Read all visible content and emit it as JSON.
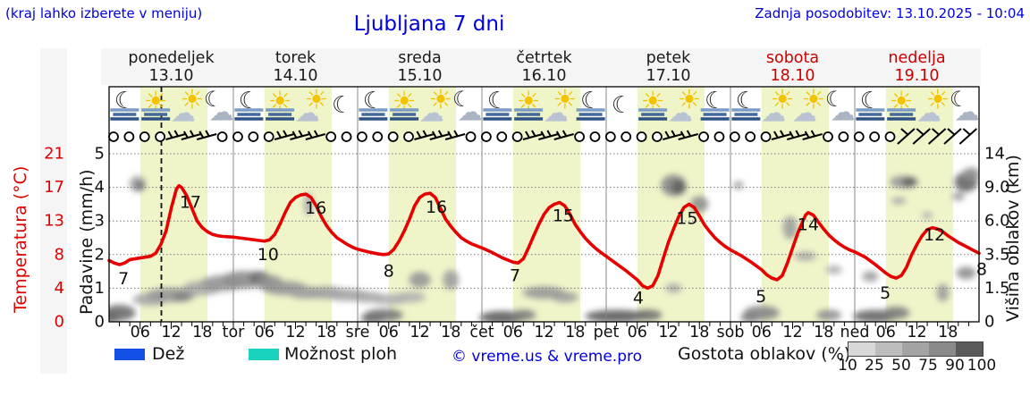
{
  "page": {
    "top_left_note": "(kraj lahko izberete v meniju)",
    "title": "Ljubljana 7 dni",
    "last_update": "Zadnja posodobitev: 13.10.2025 - 10:04"
  },
  "colors": {
    "text_blue": "#0000dd",
    "text_red": "#cc0000",
    "temp_curve": "#e60000",
    "daylight_band": "#f0f4c9",
    "rain_swatch": "#1450e8",
    "shower_swatch": "#19d3be",
    "fog_lines": [
      "#7b9cc6",
      "#44699c",
      "#2e5282"
    ],
    "sun": "#f3c300",
    "cloud_icon": "#b9c3d2",
    "density_scale": [
      "#d8d8d8",
      "#bdbdbd",
      "#a3a3a3",
      "#8a8a8a",
      "#5a5a5a"
    ]
  },
  "days": [
    {
      "name": "ponedeljek",
      "date": "13.10",
      "red": false
    },
    {
      "name": "torek",
      "date": "14.10",
      "red": false
    },
    {
      "name": "sreda",
      "date": "15.10",
      "red": false
    },
    {
      "name": "četrtek",
      "date": "16.10",
      "red": false
    },
    {
      "name": "petek",
      "date": "17.10",
      "red": false
    },
    {
      "name": "sobota",
      "date": "18.10",
      "red": true
    },
    {
      "name": "nedelja",
      "date": "19.10",
      "red": true
    }
  ],
  "axes": {
    "temp_label": "Temperatura (°C)",
    "temp_ticks": [
      "21",
      "17",
      "13",
      "8",
      "4",
      "0"
    ],
    "precip_label": "Padavine (mm/h)",
    "precip_ticks": [
      "5",
      "4",
      "3",
      "2",
      "1",
      "0"
    ],
    "cloud_label": "Višina oblakov (km)",
    "cloud_ticks": [
      "14",
      "9.0",
      "6.0",
      "3.5",
      "1.5",
      "0"
    ],
    "hour_labels": [
      "06",
      "12",
      "18"
    ],
    "day_abbrs": [
      "tor",
      "sre",
      "čet",
      "pet",
      "sob",
      "ned"
    ]
  },
  "legend": {
    "rain": "Dež",
    "showers": "Možnost ploh",
    "copyright": "© vreme.us & vreme.pro",
    "cloud_density": "Gostota oblakov (%)",
    "density_ticks": [
      "10",
      "25",
      "50",
      "75",
      "90",
      "100"
    ]
  },
  "chart_data": {
    "type": "line",
    "title": "Ljubljana 7 dni",
    "x_axis": {
      "unit": "hours from Mon 13.10 00:00",
      "range": [
        0,
        168
      ],
      "daylight_hours": [
        6,
        19
      ],
      "current_time_t": 10.1
    },
    "y_axes": {
      "temperature_c": {
        "ticks": [
          21,
          17,
          13,
          8,
          4,
          0
        ]
      },
      "precip_mm_h": {
        "ticks": [
          5,
          4,
          3,
          2,
          1,
          0
        ]
      },
      "cloud_height_km": {
        "ticks": [
          14,
          9.0,
          6.0,
          3.5,
          1.5,
          0
        ]
      }
    },
    "temperature_series": {
      "name": "Temperatura (°C)",
      "points": [
        [
          0,
          7.3
        ],
        [
          1,
          7.0
        ],
        [
          2,
          6.8
        ],
        [
          3,
          7.0
        ],
        [
          4,
          7.4
        ],
        [
          6,
          7.6
        ],
        [
          8,
          7.8
        ],
        [
          9,
          8.2
        ],
        [
          10,
          9.5
        ],
        [
          11,
          11.5
        ],
        [
          12,
          14.5
        ],
        [
          13,
          16.8
        ],
        [
          13.5,
          17.2
        ],
        [
          14,
          17.0
        ],
        [
          15,
          16.0
        ],
        [
          16,
          14.5
        ],
        [
          17,
          13.0
        ],
        [
          18,
          12.0
        ],
        [
          19,
          11.4
        ],
        [
          20,
          11.0
        ],
        [
          21,
          10.8
        ],
        [
          22,
          10.7
        ],
        [
          24,
          10.6
        ],
        [
          26,
          10.4
        ],
        [
          28,
          10.2
        ],
        [
          30,
          10.0
        ],
        [
          31,
          10.2
        ],
        [
          32,
          11.0
        ],
        [
          33,
          12.5
        ],
        [
          34,
          14.0
        ],
        [
          35,
          15.2
        ],
        [
          36,
          15.8
        ],
        [
          37,
          16.1
        ],
        [
          38,
          16.2
        ],
        [
          39,
          15.8
        ],
        [
          40,
          14.8
        ],
        [
          41,
          13.5
        ],
        [
          42,
          12.3
        ],
        [
          43,
          11.3
        ],
        [
          44,
          10.5
        ],
        [
          45,
          10.0
        ],
        [
          46,
          9.5
        ],
        [
          47,
          9.1
        ],
        [
          48,
          8.8
        ],
        [
          50,
          8.4
        ],
        [
          52,
          8.1
        ],
        [
          53,
          8.0
        ],
        [
          54,
          8.1
        ],
        [
          55,
          8.8
        ],
        [
          56,
          10.0
        ],
        [
          57,
          11.5
        ],
        [
          58,
          13.2
        ],
        [
          59,
          14.8
        ],
        [
          60,
          15.8
        ],
        [
          61,
          16.2
        ],
        [
          62,
          16.3
        ],
        [
          63,
          15.8
        ],
        [
          64,
          14.5
        ],
        [
          65,
          13.2
        ],
        [
          66,
          12.2
        ],
        [
          67,
          11.3
        ],
        [
          68,
          10.5
        ],
        [
          69,
          10.0
        ],
        [
          70,
          9.6
        ],
        [
          71,
          9.3
        ],
        [
          72,
          9.0
        ],
        [
          74,
          8.3
        ],
        [
          76,
          7.6
        ],
        [
          78,
          7.1
        ],
        [
          79,
          7.0
        ],
        [
          80,
          7.5
        ],
        [
          81,
          9.0
        ],
        [
          82,
          10.8
        ],
        [
          83,
          12.5
        ],
        [
          84,
          13.8
        ],
        [
          85,
          14.6
        ],
        [
          86,
          15.0
        ],
        [
          87,
          15.2
        ],
        [
          88,
          14.8
        ],
        [
          89,
          13.8
        ],
        [
          90,
          12.5
        ],
        [
          91,
          11.4
        ],
        [
          92,
          10.4
        ],
        [
          93,
          9.6
        ],
        [
          94,
          8.9
        ],
        [
          95,
          8.3
        ],
        [
          96,
          7.8
        ],
        [
          98,
          6.9
        ],
        [
          100,
          6.0
        ],
        [
          102,
          5.0
        ],
        [
          103,
          4.3
        ],
        [
          104,
          4.0
        ],
        [
          105,
          4.3
        ],
        [
          106,
          5.5
        ],
        [
          107,
          7.5
        ],
        [
          108,
          9.8
        ],
        [
          109,
          11.8
        ],
        [
          110,
          13.5
        ],
        [
          111,
          14.6
        ],
        [
          112,
          15.0
        ],
        [
          113,
          14.6
        ],
        [
          114,
          13.6
        ],
        [
          115,
          12.4
        ],
        [
          116,
          11.4
        ],
        [
          117,
          10.5
        ],
        [
          118,
          9.8
        ],
        [
          119,
          9.2
        ],
        [
          120,
          8.7
        ],
        [
          122,
          7.9
        ],
        [
          124,
          7.1
        ],
        [
          126,
          6.2
        ],
        [
          127,
          5.6
        ],
        [
          128,
          5.2
        ],
        [
          129,
          5.0
        ],
        [
          130,
          5.5
        ],
        [
          131,
          7.0
        ],
        [
          132,
          9.0
        ],
        [
          133,
          11.2
        ],
        [
          134,
          13.0
        ],
        [
          134.5,
          13.7
        ],
        [
          135,
          14.0
        ],
        [
          136,
          13.7
        ],
        [
          137,
          12.8
        ],
        [
          138,
          11.8
        ],
        [
          139,
          10.9
        ],
        [
          140,
          10.2
        ],
        [
          141,
          9.6
        ],
        [
          142,
          9.1
        ],
        [
          143,
          8.7
        ],
        [
          144,
          8.4
        ],
        [
          146,
          7.7
        ],
        [
          148,
          6.8
        ],
        [
          150,
          5.8
        ],
        [
          151,
          5.4
        ],
        [
          152,
          5.2
        ],
        [
          153,
          5.5
        ],
        [
          154,
          6.5
        ],
        [
          155,
          8.0
        ],
        [
          156,
          9.5
        ],
        [
          157,
          10.8
        ],
        [
          158,
          11.7
        ],
        [
          159,
          12.0
        ],
        [
          160,
          11.8
        ],
        [
          161,
          11.4
        ],
        [
          162,
          10.8
        ],
        [
          163,
          10.3
        ],
        [
          164,
          9.8
        ],
        [
          165,
          9.4
        ],
        [
          166,
          9.0
        ],
        [
          167,
          8.6
        ],
        [
          168,
          8.2
        ]
      ]
    },
    "daily_extremes": [
      [
        2.8,
        5.1,
        "7"
      ],
      [
        15.7,
        15.2,
        "17"
      ],
      [
        30.7,
        8.0,
        "10"
      ],
      [
        39.9,
        14.5,
        "16"
      ],
      [
        54.0,
        6.0,
        "8"
      ],
      [
        63.2,
        14.6,
        "16"
      ],
      [
        78.4,
        5.5,
        "7"
      ],
      [
        87.7,
        13.6,
        "15"
      ],
      [
        102.2,
        2.8,
        "4"
      ],
      [
        111.6,
        13.3,
        "15"
      ],
      [
        125.9,
        3.0,
        "5"
      ],
      [
        135.0,
        12.4,
        "14"
      ],
      [
        149.9,
        3.4,
        "5"
      ],
      [
        159.4,
        10.9,
        "12"
      ],
      [
        168.5,
        6.2,
        "8"
      ]
    ],
    "weather_icons": [
      "moon-fog",
      "sun-fog",
      "sun-cloud",
      "moon-cloud",
      "moon-fog",
      "sun-fog",
      "sun-cloud",
      "moon",
      "moon-fog",
      "sun-fog",
      "sun-cloud",
      "moon-cloud",
      "moon-fog",
      "sun-fog",
      "sun-cloud",
      "moon-fog",
      "moon",
      "sun-fog",
      "sun-cloud",
      "moon-fog",
      "moon-fog",
      "sun-cloud",
      "sun-cloud",
      "moon-cloud",
      "moon-fog",
      "sun-fog",
      "sun-cloud",
      "moon-cloud"
    ],
    "wind_symbols": [
      "calm",
      "calm",
      "calm",
      "calm",
      "barb",
      "barb",
      "barb",
      "calm",
      "calm",
      "calm",
      "calm",
      "barb",
      "barb",
      "barb",
      "calm",
      "calm",
      "calm",
      "calm",
      "calm",
      "calm",
      "barb",
      "barb",
      "barb",
      "calm",
      "calm",
      "calm",
      "calm",
      "barb",
      "barb",
      "barb",
      "calm",
      "calm",
      "calm",
      "calm",
      "calm",
      "calm",
      "barb",
      "barb",
      "calm",
      "calm",
      "calm",
      "calm",
      "calm",
      "barb",
      "barb",
      "barb",
      "calm",
      "calm",
      "calm",
      "calm",
      "calm",
      "strong",
      "strong",
      "strong",
      "strong",
      "strong"
    ],
    "cloud_blobs_t_km_rx_ry_density": [
      [
        0.5,
        0.2,
        10,
        6,
        0.85
      ],
      [
        2,
        0.4,
        18,
        9,
        0.7
      ],
      [
        5.5,
        9.5,
        9,
        9,
        0.4
      ],
      [
        6,
        9.2,
        5,
        5,
        0.7
      ],
      [
        8,
        1.0,
        20,
        7,
        0.35
      ],
      [
        12,
        1.2,
        28,
        8,
        0.45
      ],
      [
        14,
        1.1,
        10,
        5,
        0.6
      ],
      [
        18,
        1.5,
        22,
        8,
        0.35
      ],
      [
        22,
        1.8,
        25,
        9,
        0.45
      ],
      [
        26,
        2.0,
        25,
        10,
        0.5
      ],
      [
        29,
        2.1,
        12,
        8,
        0.7
      ],
      [
        31,
        1.8,
        15,
        9,
        0.5
      ],
      [
        34,
        1.5,
        25,
        8,
        0.45
      ],
      [
        38,
        1.3,
        20,
        7,
        0.4
      ],
      [
        38.5,
        7.5,
        5,
        13,
        0.35
      ],
      [
        42,
        1.3,
        22,
        7,
        0.4
      ],
      [
        46,
        1.2,
        25,
        7,
        0.35
      ],
      [
        50,
        1.1,
        20,
        6,
        0.35
      ],
      [
        51,
        0.15,
        14,
        5,
        0.8
      ],
      [
        53,
        0.3,
        22,
        7,
        0.65
      ],
      [
        54,
        1.0,
        22,
        6,
        0.3
      ],
      [
        58,
        1.1,
        18,
        6,
        0.3
      ],
      [
        60,
        2.0,
        12,
        9,
        0.45
      ],
      [
        66,
        2.0,
        9,
        11,
        0.4
      ],
      [
        76,
        0.2,
        26,
        7,
        0.8
      ],
      [
        80,
        0.3,
        14,
        6,
        0.6
      ],
      [
        84,
        1.3,
        24,
        7,
        0.45
      ],
      [
        88,
        1.1,
        15,
        6,
        0.4
      ],
      [
        98,
        0.25,
        35,
        7,
        0.8
      ],
      [
        104,
        0.3,
        16,
        6,
        0.7
      ],
      [
        109,
        1.5,
        9,
        5,
        0.35
      ],
      [
        109,
        9.3,
        14,
        12,
        0.55
      ],
      [
        110,
        9.0,
        8,
        8,
        0.8
      ],
      [
        114,
        7.5,
        10,
        9,
        0.5
      ],
      [
        121.5,
        9.3,
        6,
        5,
        0.35
      ],
      [
        124,
        0.2,
        12,
        5,
        0.7
      ],
      [
        126,
        0.4,
        20,
        8,
        0.55
      ],
      [
        131.5,
        5.5,
        8,
        13,
        0.4
      ],
      [
        134.5,
        3.4,
        12,
        5,
        0.35
      ],
      [
        139,
        0.3,
        14,
        6,
        0.5
      ],
      [
        140,
        2.6,
        9,
        5,
        0.3
      ],
      [
        147,
        2.2,
        9,
        6,
        0.4
      ],
      [
        148,
        0.25,
        25,
        7,
        0.75
      ],
      [
        152,
        0.4,
        15,
        7,
        0.6
      ],
      [
        152.5,
        7.8,
        8,
        4,
        0.35
      ],
      [
        153.5,
        9.8,
        16,
        7,
        0.45
      ],
      [
        154.5,
        9.8,
        8,
        5,
        0.8
      ],
      [
        158,
        6.5,
        6,
        4,
        0.3
      ],
      [
        161,
        1.3,
        7,
        10,
        0.4
      ],
      [
        164,
        8.2,
        7,
        5,
        0.4
      ],
      [
        165.5,
        9.8,
        13,
        11,
        0.75
      ],
      [
        166.5,
        11,
        10,
        7,
        0.5
      ],
      [
        165.5,
        2.4,
        11,
        7,
        0.5
      ]
    ]
  }
}
